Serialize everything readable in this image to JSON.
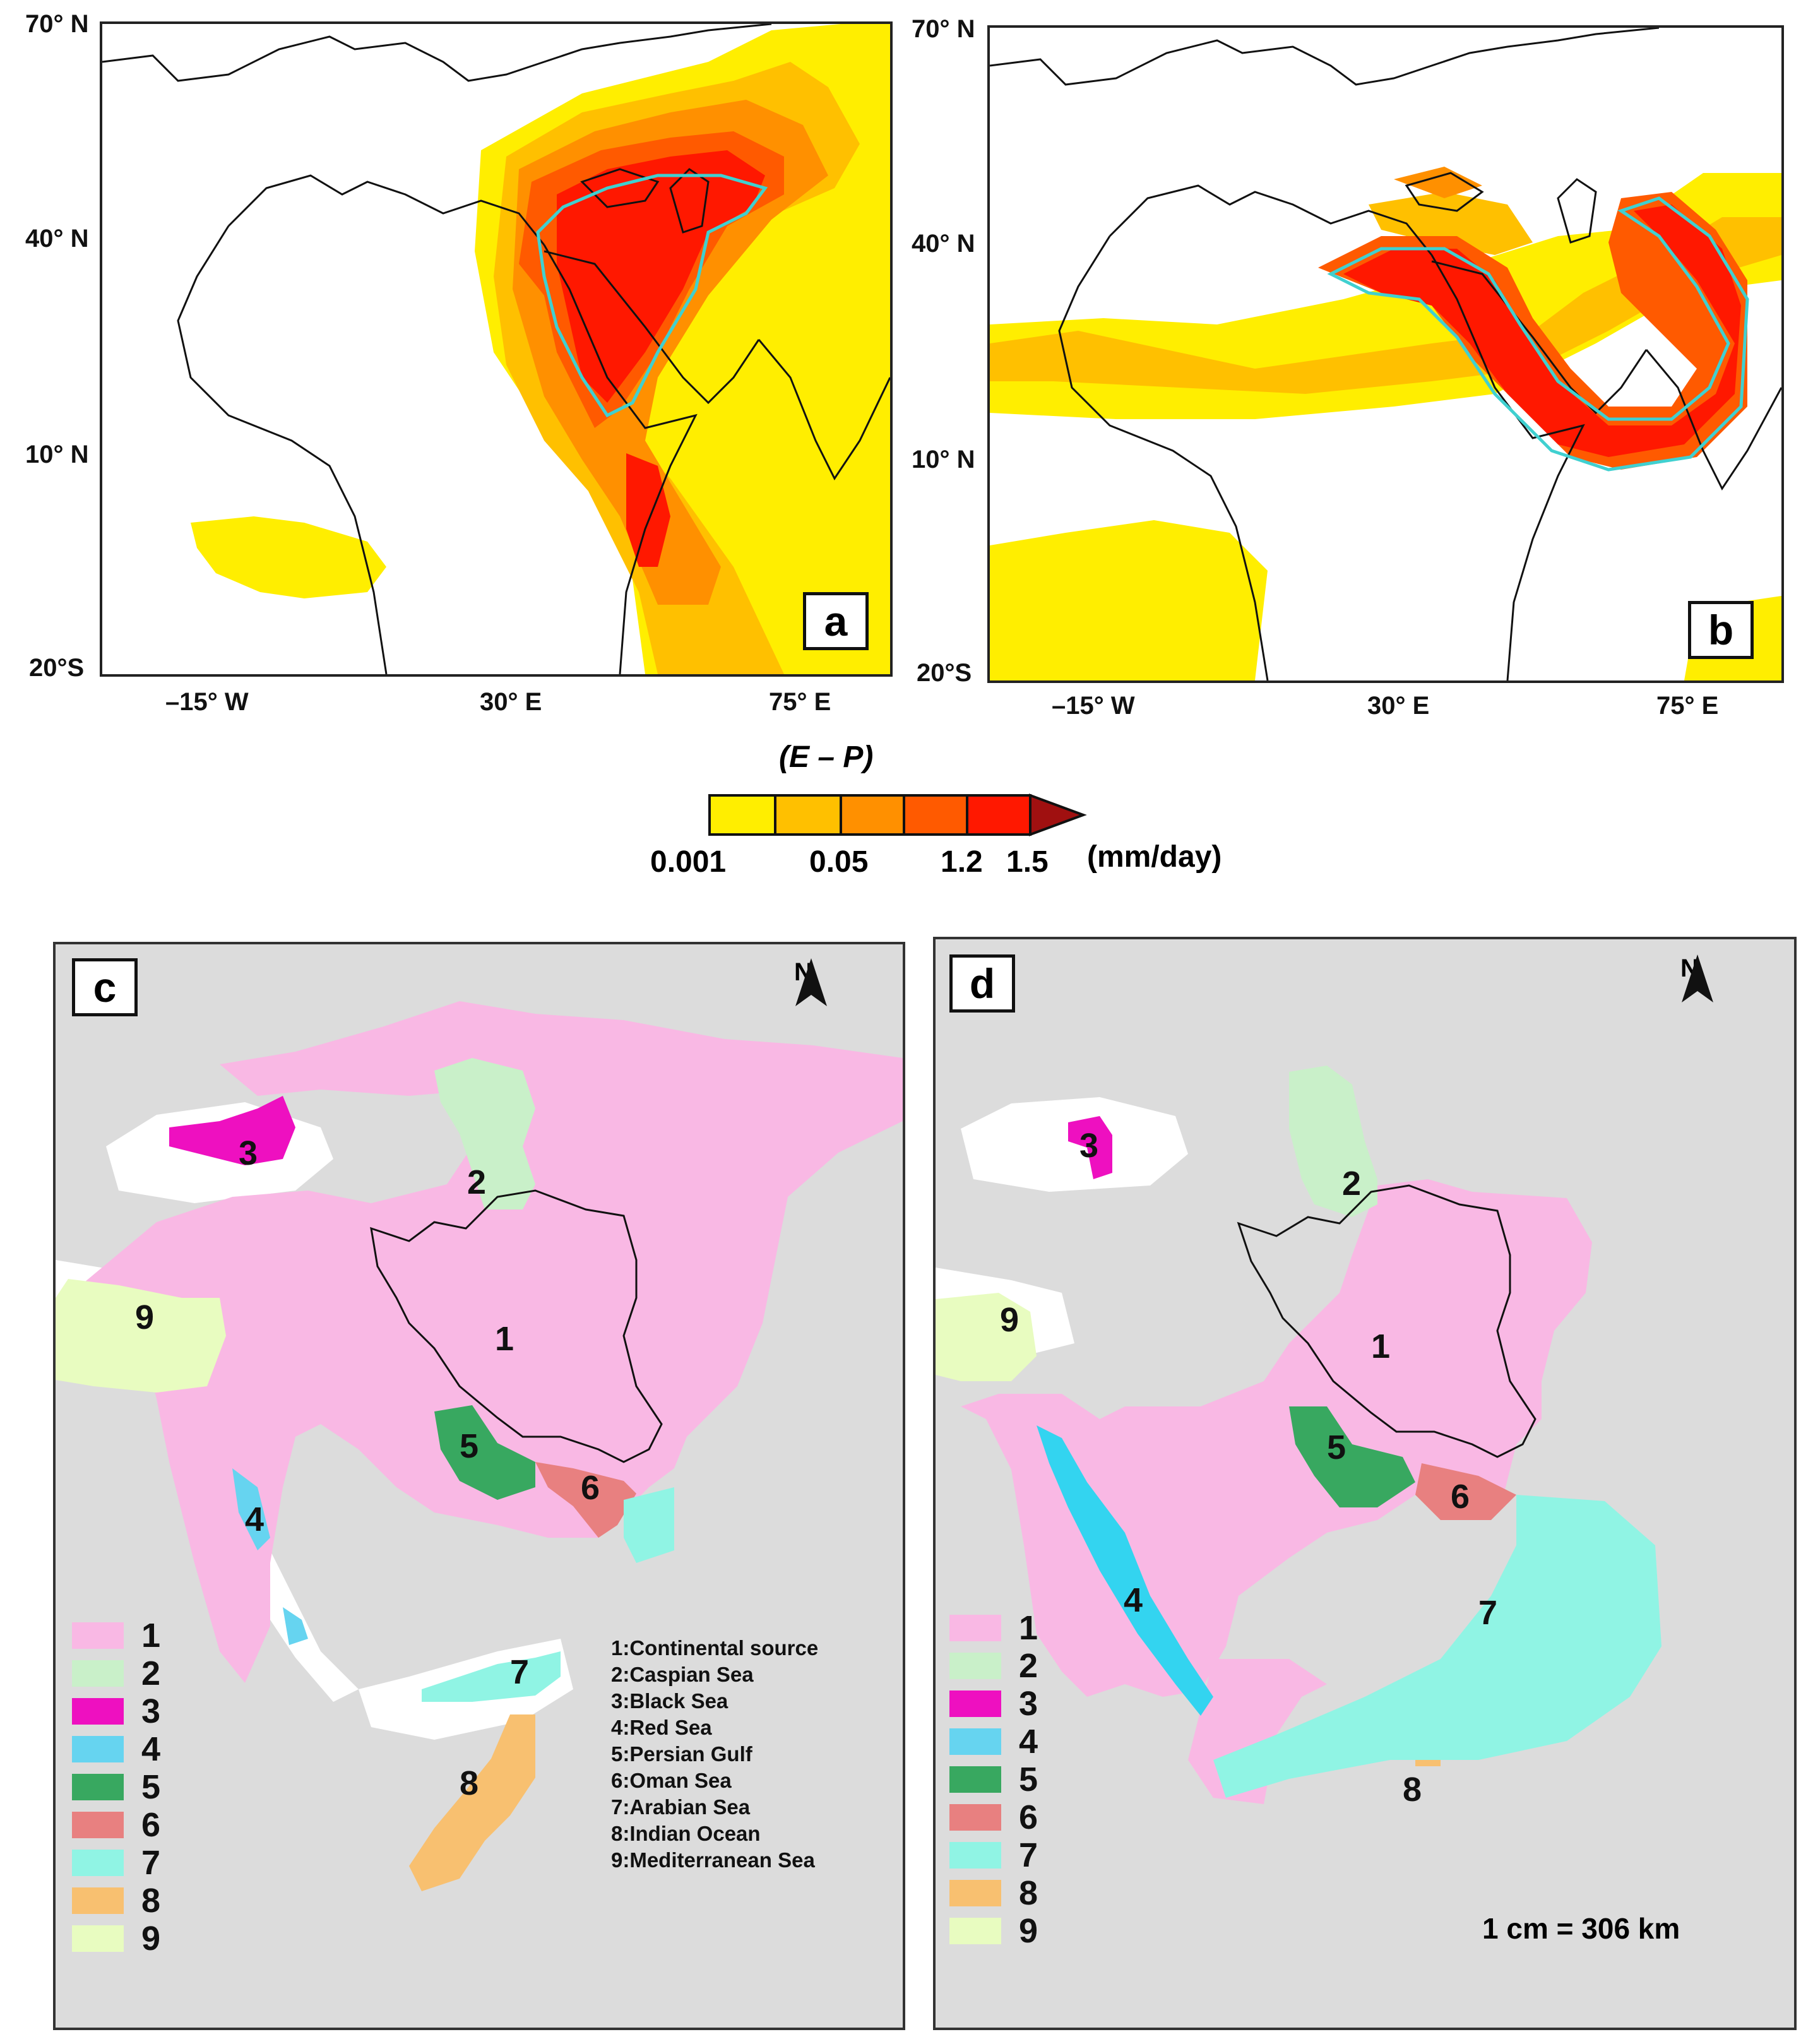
{
  "map_a": {
    "panel_label": "a",
    "lat_labels": [
      "70° N",
      "40° N",
      "10° N",
      "20°S"
    ],
    "lon_labels": [
      "–15° W",
      "30° E",
      "75° E"
    ]
  },
  "map_b": {
    "panel_label": "b",
    "lat_labels": [
      "70° N",
      "40° N",
      "10° N",
      "20°S"
    ],
    "lon_labels": [
      "–15° W",
      "30° E",
      "75° E"
    ]
  },
  "colorbar": {
    "title": "(E – P)",
    "tick_labels": [
      "0.001",
      "0.05",
      "1.2",
      "1.5"
    ],
    "units": "(mm/day)",
    "colors": [
      "#ffee00",
      "#ffc000",
      "#ff9000",
      "#ff5a00",
      "#ff1800",
      "#a01010"
    ]
  },
  "map_c": {
    "panel_label": "c",
    "north_label": "N",
    "region_labels": [
      "1",
      "2",
      "3",
      "4",
      "5",
      "6",
      "7",
      "8",
      "9"
    ],
    "key": [
      "1:Continental source",
      "2:Caspian Sea",
      "3:Black Sea",
      "4:Red Sea",
      "5:Persian Gulf",
      "6:Oman Sea",
      "7:Arabian Sea",
      "8:Indian Ocean",
      "9:Mediterranean Sea"
    ]
  },
  "map_d": {
    "panel_label": "d",
    "north_label": "N",
    "region_labels": [
      "1",
      "2",
      "3",
      "4",
      "5",
      "6",
      "7",
      "8",
      "9"
    ],
    "scale": "1 cm = 306 km"
  },
  "legend": {
    "items": [
      {
        "label": "1",
        "color": "#f9b8e4"
      },
      {
        "label": "2",
        "color": "#c9f0c9"
      },
      {
        "label": "3",
        "color": "#ee10c0"
      },
      {
        "label": "4",
        "color": "#66d4f0"
      },
      {
        "label": "5",
        "color": "#38a860"
      },
      {
        "label": "6",
        "color": "#e88080"
      },
      {
        "label": "7",
        "color": "#90f4e4"
      },
      {
        "label": "8",
        "color": "#f8c070"
      },
      {
        "label": "9",
        "color": "#e8fcc0"
      }
    ]
  }
}
